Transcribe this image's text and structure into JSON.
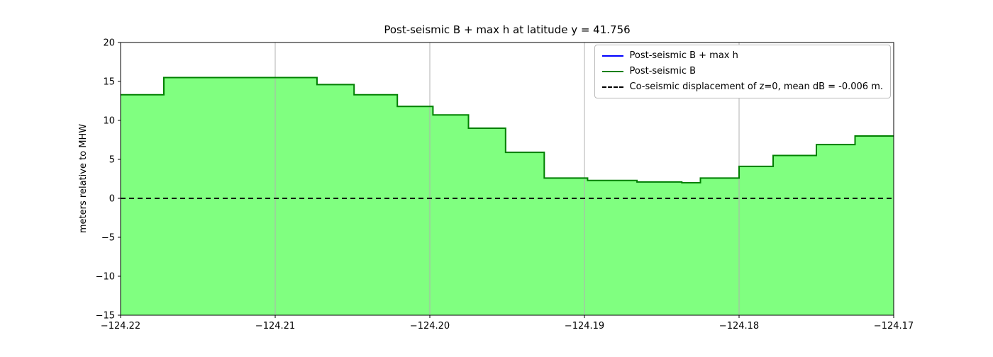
{
  "legend": {
    "items": [
      {
        "label": "Post-seismic B + max h",
        "color": "#0000ff",
        "style": "solid"
      },
      {
        "label": "Post-seismic B",
        "color": "#008000",
        "style": "solid"
      },
      {
        "label": "Co-seismic displacement of z=0, mean dB = -0.006 m.",
        "color": "#000000",
        "style": "dashed"
      }
    ]
  },
  "chart_data": {
    "type": "area",
    "drawstyle": "steps",
    "title": "Post-seismic B + max h at latitude y = 41.756",
    "xlabel": "",
    "ylabel": "meters relative to MHW",
    "xlim": [
      -124.22,
      -124.17
    ],
    "ylim": [
      -15,
      20
    ],
    "grid": "vertical",
    "legend_position": "upper right",
    "x_edges": [
      -124.22,
      -124.2172,
      -124.2073,
      -124.2049,
      -124.2021,
      -124.1998,
      -124.1975,
      -124.1951,
      -124.1926,
      -124.1898,
      -124.1866,
      -124.1837,
      -124.1825,
      -124.18,
      -124.1778,
      -124.175,
      -124.1725,
      -124.17
    ],
    "series": [
      {
        "name": "Post-seismic B + max h",
        "color": "#0000ff",
        "line_width": 1.5,
        "values": [
          13.3,
          15.5,
          14.6,
          13.3,
          11.8,
          10.7,
          9.0,
          5.9,
          2.6,
          2.3,
          2.1,
          2.0,
          2.6,
          4.1,
          5.5,
          6.9,
          8.0
        ]
      },
      {
        "name": "Post-seismic B",
        "color": "#008000",
        "fill": "#80ff80",
        "line_width": 2,
        "values": [
          13.3,
          15.5,
          14.6,
          13.3,
          11.8,
          10.7,
          9.0,
          5.9,
          2.6,
          2.3,
          2.1,
          2.0,
          2.6,
          4.1,
          5.5,
          6.9,
          8.0
        ]
      }
    ],
    "fill_baseline": -15,
    "hline": {
      "y": 0,
      "label": "Co-seismic displacement of z=0, mean dB = -0.006 m.",
      "style": "dashed",
      "color": "#000000",
      "line_width": 1.8
    },
    "xticks": {
      "values": [
        -124.22,
        -124.21,
        -124.2,
        -124.19,
        -124.18,
        -124.17
      ],
      "labels": [
        "−124.22",
        "−124.21",
        "−124.20",
        "−124.19",
        "−124.18",
        "−124.17"
      ]
    },
    "yticks": {
      "values": [
        -15,
        -10,
        -5,
        0,
        5,
        10,
        15,
        20
      ],
      "labels": [
        "−15",
        "−10",
        "−5",
        "0",
        "5",
        "10",
        "15",
        "20"
      ]
    }
  }
}
